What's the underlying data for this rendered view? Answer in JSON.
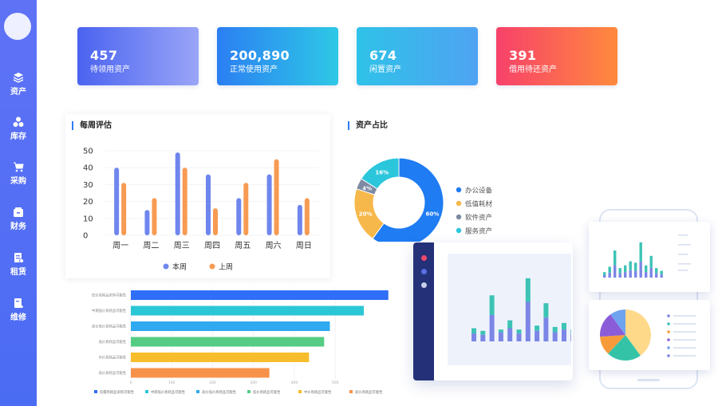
{
  "sidebar": {
    "items": [
      {
        "icon": "layers-icon",
        "label": "资产"
      },
      {
        "icon": "boxes-icon",
        "label": "库存"
      },
      {
        "icon": "cart-icon",
        "label": "采购"
      },
      {
        "icon": "wallet-icon",
        "label": "财务"
      },
      {
        "icon": "lease-icon",
        "label": "租赁"
      },
      {
        "icon": "wrench-icon",
        "label": "维修"
      }
    ]
  },
  "stats": [
    {
      "value": "457",
      "label": "待领用资产",
      "color_from": "#4a63f0",
      "color_to": "#9aa5f7"
    },
    {
      "value": "200,890",
      "label": "正常使用资产",
      "color_from": "#2b7ff2",
      "color_to": "#2ec8e6"
    },
    {
      "value": "674",
      "label": "闲置资产",
      "color_from": "#2fc2e8",
      "color_to": "#4fa3f2"
    },
    {
      "value": "391",
      "label": "借用待还资产",
      "color_from": "#f7416a",
      "color_to": "#ff8a3d"
    }
  ],
  "weekly": {
    "title": "每周评估",
    "chart_data": {
      "type": "bar",
      "categories": [
        "周一",
        "周二",
        "周三",
        "周四",
        "周五",
        "周六",
        "周日"
      ],
      "series": [
        {
          "name": "本周",
          "values": [
            40,
            15,
            49,
            36,
            22,
            36,
            18
          ],
          "color": "#6f86ee"
        },
        {
          "name": "上周",
          "values": [
            31,
            22,
            40,
            16,
            31,
            45,
            22
          ],
          "color": "#f79b53"
        }
      ],
      "y_ticks": [
        "0",
        "10",
        "20",
        "30",
        "40",
        "50"
      ],
      "ylim": [
        0,
        50
      ]
    }
  },
  "ratio": {
    "title": "资产占比",
    "chart_data": {
      "type": "pie",
      "slices": [
        {
          "name": "办公设备",
          "value": 60,
          "label": "60%",
          "color": "#1f7cf2"
        },
        {
          "name": "低值耗材",
          "value": 20,
          "label": "20%",
          "color": "#f7b84b"
        },
        {
          "name": "软件资产",
          "value": 4,
          "label": "4%",
          "color": "#7d8aa3"
        },
        {
          "name": "服务资产",
          "value": 16,
          "label": "16%",
          "color": "#2cc6dc"
        }
      ]
    }
  },
  "hbar": {
    "chart_data": {
      "type": "bar",
      "orientation": "horizontal",
      "categories": [
        "低价易耗品采购可能性",
        "中期低价易耗品可能性",
        "高价低价易耗品可能性",
        "低价易耗品可能性",
        "中价易耗品可能性",
        "高价易耗品可能性"
      ],
      "values": [
        630,
        570,
        487,
        473,
        436,
        339
      ],
      "colors": [
        "#2f6ef7",
        "#2cc7d6",
        "#2fa9ef",
        "#55cc84",
        "#f7bd2c",
        "#f7924a"
      ],
      "x_ticks": [
        "0",
        "100",
        "200",
        "300",
        "400",
        "500"
      ],
      "xlim": [
        0,
        650
      ],
      "legend": [
        "低價易耗品采购可能性",
        "中期低价易耗品可能性",
        "高价低价易耗品可能性",
        "低价易耗品可能性",
        "中价易耗品可能性",
        "高价易耗品可能性"
      ]
    }
  },
  "mockup": {
    "monitor_bars": [
      {
        "a": 10,
        "b": 6
      },
      {
        "a": 8,
        "b": 5
      },
      {
        "a": 35,
        "b": 20
      },
      {
        "a": 9,
        "b": 7
      },
      {
        "a": 16,
        "b": 10
      },
      {
        "a": 9,
        "b": 6
      },
      {
        "a": 48,
        "b": 30
      },
      {
        "a": 12,
        "b": 8
      },
      {
        "a": 29,
        "b": 18
      },
      {
        "a": 11,
        "b": 7
      },
      {
        "a": 14,
        "b": 9
      },
      {
        "a": 9,
        "b": 6
      }
    ],
    "card_bars": [
      4,
      8,
      20,
      7,
      9,
      12,
      11,
      26,
      9,
      16,
      7,
      5
    ],
    "card_pie": [
      {
        "value": 40,
        "color": "#ffd98a"
      },
      {
        "value": 22,
        "color": "#35c3a8"
      },
      {
        "value": 12,
        "color": "#f79b3a"
      },
      {
        "value": 16,
        "color": "#8b5cd8"
      },
      {
        "value": 10,
        "color": "#6fa3ef"
      }
    ]
  }
}
